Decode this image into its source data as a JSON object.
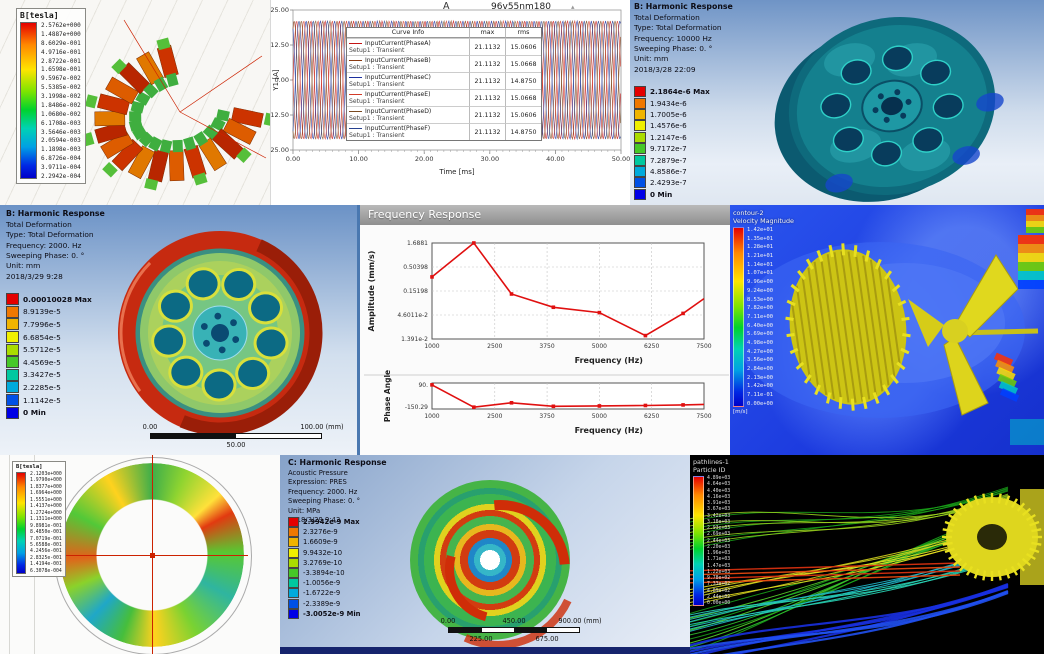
{
  "chart_data": [
    {
      "type": "line",
      "title": "96v55nm180",
      "corner_label": "A",
      "xlabel": "Time [ms]",
      "ylabel": "Y1 [A]",
      "xlim": [
        0,
        50
      ],
      "ylim": [
        -25,
        25
      ],
      "xticks": [
        "0.00",
        "10.00",
        "20.00",
        "30.00",
        "40.00",
        "50.00"
      ],
      "yticks": [
        "25.00",
        "12.50",
        "0.00",
        "-12.50",
        "-25.00"
      ],
      "signal": {
        "kind": "sine",
        "amplitude": 21.1132,
        "cycles": 23,
        "duration_ms": 50
      },
      "legend_headers": [
        "Curve Info",
        "max",
        "rms"
      ],
      "series": [
        {
          "name": "InputCurrent(PhaseA)",
          "setup": "Setup1 : Transient",
          "max": "21.1132",
          "rms": "15.0606",
          "phase_deg": 0,
          "color": "#c41414"
        },
        {
          "name": "InputCurrent(PhaseB)",
          "setup": "Setup1 : Transient",
          "max": "21.1132",
          "rms": "15.0668",
          "phase_deg": 60,
          "color": "#8a3a12"
        },
        {
          "name": "InputCurrent(PhaseC)",
          "setup": "Setup1 : Transient",
          "max": "21.1132",
          "rms": "14.8750",
          "phase_deg": 120,
          "color": "#1c2f9e"
        },
        {
          "name": "InputCurrent(PhaseE)",
          "setup": "Setup1 : Transient",
          "max": "21.1132",
          "rms": "15.0668",
          "phase_deg": 180,
          "color": "#d23a28"
        },
        {
          "name": "InputCurrent(PhaseD)",
          "setup": "Setup1 : Transient",
          "max": "21.1132",
          "rms": "15.0606",
          "phase_deg": 240,
          "color": "#7a4a20"
        },
        {
          "name": "InputCurrent(PhaseF)",
          "setup": "Setup1 : Transient",
          "max": "21.1132",
          "rms": "14.8750",
          "phase_deg": 300,
          "color": "#27418f"
        }
      ]
    },
    {
      "type": "line",
      "title": "Frequency Response - Amplitude",
      "ylabel": "Amplitude (mm/s)",
      "xlabel": "Frequency (Hz)",
      "yscale": "log",
      "x": [
        1000,
        2000,
        2900,
        3900,
        5000,
        6100,
        7000,
        7500
      ],
      "y": [
        0.31,
        1.6881,
        0.132,
        0.068,
        0.052,
        0.0165,
        0.05,
        0.105
      ],
      "yticks": [
        "1.6881",
        "0.50398",
        "0.15198",
        "4.6011e-2",
        "1.391e-2"
      ],
      "xticks": [
        "1000",
        "2500",
        "3750",
        "5000",
        "6250",
        "7500"
      ],
      "xlim": [
        1000,
        7500
      ],
      "color": "#e01010"
    },
    {
      "type": "line",
      "title": "Frequency Response - Phase",
      "ylabel": "Phase Angle",
      "xlabel": "Frequency (Hz)",
      "x": [
        1000,
        2000,
        2900,
        3900,
        5000,
        6100,
        7000,
        7500
      ],
      "y": [
        90,
        -150.29,
        -103,
        -141,
        -137,
        -132,
        -126,
        -120
      ],
      "yticks": [
        "90.",
        "-150.29"
      ],
      "ylim": [
        -170,
        110
      ],
      "xticks": [
        "1000",
        "2500",
        "3750",
        "5000",
        "6250",
        "7500"
      ],
      "xlim": [
        1000,
        7500
      ],
      "color": "#e01010"
    }
  ],
  "panels": {
    "a": {
      "legend": {
        "title": "B[tesla]",
        "values": [
          "2.5762e+000",
          "1.4887e+000",
          "8.6029e-001",
          "4.9716e-001",
          "2.8722e-001",
          "1.6598e-001",
          "9.5967e-002",
          "5.5385e-002",
          "3.1998e-002",
          "1.8486e-002",
          "1.0680e-002",
          "6.1708e-003",
          "3.5646e-003",
          "2.0594e-003",
          "1.1898e-003",
          "6.8726e-004",
          "3.9711e-004",
          "2.2942e-004"
        ]
      }
    },
    "b": {
      "title": "96v55nm180",
      "corner_label": "A",
      "marker_icon": "▴"
    },
    "c": {
      "header": [
        "B: Harmonic Response",
        "Total Deformation",
        "Type: Total Deformation",
        "Frequency: 10000 Hz",
        "Sweeping Phase: 0. °",
        "Unit: mm",
        "2018/3/28 22:09"
      ],
      "legend_values": [
        "2.1864e-6 Max",
        "1.9434e-6",
        "1.7005e-6",
        "1.4576e-6",
        "1.2147e-6",
        "9.7172e-7",
        "7.2879e-7",
        "4.8586e-7",
        "2.4293e-7",
        "0 Min"
      ]
    },
    "d": {
      "header": [
        "B: Harmonic Response",
        "Total Deformation",
        "Type: Total Deformation",
        "Frequency: 2000. Hz",
        "Sweeping Phase: 0. °",
        "Unit: mm",
        "2018/3/29 9:28"
      ],
      "legend_values": [
        "0.00010028 Max",
        "8.9139e-5",
        "7.7996e-5",
        "6.6854e-5",
        "5.5712e-5",
        "4.4569e-5",
        "3.3427e-5",
        "2.2285e-5",
        "1.1142e-5",
        "0 Min"
      ],
      "ruler": {
        "top": [
          "0.00",
          "100.00 (mm)"
        ],
        "bottom": [
          "50.00"
        ]
      }
    },
    "e": {
      "window_title": "Frequency Response"
    },
    "f": {
      "legend_title": "contour-2",
      "legend_subtitle": "Velocity Magnitude",
      "legend_unit": "[m/s]",
      "legend_values": [
        "1.42e+01",
        "1.35e+01",
        "1.28e+01",
        "1.21e+01",
        "1.14e+01",
        "1.07e+01",
        "9.96e+00",
        "9.24e+00",
        "8.53e+00",
        "7.82e+00",
        "7.11e+00",
        "6.40e+00",
        "5.69e+00",
        "4.98e+00",
        "4.27e+00",
        "3.56e+00",
        "2.84e+00",
        "2.13e+00",
        "1.42e+00",
        "7.11e-01",
        "0.00e+00"
      ]
    },
    "g": {
      "legend": {
        "title": "B[tesla]",
        "values": [
          "2.1203e+000",
          "1.9790e+000",
          "1.8377e+000",
          "1.6964e+000",
          "1.5551e+000",
          "1.4137e+000",
          "1.2724e+000",
          "1.1311e+000",
          "9.8981e-001",
          "8.4850e-001",
          "7.0719e-001",
          "5.6588e-001",
          "4.2456e-001",
          "2.8325e-001",
          "1.4194e-001",
          "6.3078e-004"
        ]
      }
    },
    "h": {
      "header": [
        "C: Harmonic Response",
        "Acoustic Pressure",
        "Expression: PRES",
        "Frequency: 2000. Hz",
        "Sweeping Phase: 0. °",
        "Unit: MPa",
        "2018/3/29 9:43"
      ],
      "legend_values": [
        "2.9942e-9 Max",
        "2.3276e-9",
        "1.6609e-9",
        "9.9432e-10",
        "3.2769e-10",
        "-3.3894e-10",
        "-1.0056e-9",
        "-1.6722e-9",
        "-2.3389e-9",
        "-3.0052e-9 Min"
      ],
      "ruler": {
        "top": [
          "0.00",
          "450.00",
          "900.00 (mm)"
        ],
        "bottom": [
          "225.00",
          "675.00"
        ]
      }
    },
    "i": {
      "legend_title": "pathlines-1",
      "legend_subtitle": "Particle ID",
      "legend_values": [
        "4.89e+03",
        "4.64e+03",
        "4.40e+03",
        "4.16e+03",
        "3.91e+03",
        "3.67e+03",
        "3.42e+03",
        "3.18e+03",
        "2.93e+03",
        "2.69e+03",
        "2.44e+03",
        "2.20e+03",
        "1.96e+03",
        "1.71e+03",
        "1.47e+03",
        "1.22e+03",
        "9.78e+02",
        "7.33e+02",
        "4.89e+02",
        "2.44e+02",
        "0.00e+00"
      ],
      "palette": [
        "#18a018",
        "#2fc02f",
        "#56d22a",
        "#9ad21e",
        "#cfd21e",
        "#e8a018",
        "#e84810",
        "#d83010",
        "#20b6c8",
        "#28d2b4",
        "#1830e0",
        "#2050f0"
      ]
    }
  }
}
